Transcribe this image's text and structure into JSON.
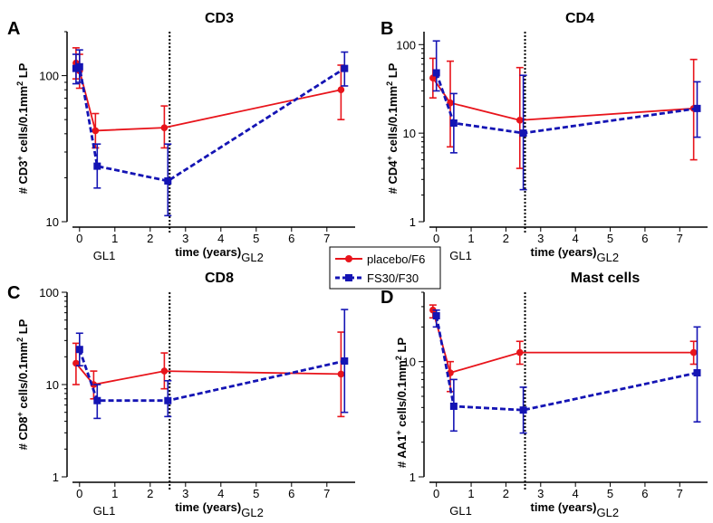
{
  "colors": {
    "placebo": "#e8141b",
    "fs30": "#1414b4",
    "axis": "#000000"
  },
  "legend": {
    "position": "center",
    "items": [
      {
        "label": "placebo/F6",
        "color": "#e8141b",
        "style": "solid",
        "marker": "circle"
      },
      {
        "label": "FS30/F30",
        "color": "#1414b4",
        "style": "dashed",
        "marker": "square"
      }
    ]
  },
  "chart_data": [
    {
      "type": "line",
      "panel": "A",
      "title": "CD3",
      "ylabel_parts": [
        "# CD3",
        "+",
        " cells/0.1mm",
        "2",
        " LP"
      ],
      "xlabel_main": "time (years)",
      "xlabel_sub": "GL2",
      "gl1_label": "GL1",
      "yscale": "log",
      "ylim": [
        10,
        200
      ],
      "yticks": [
        10,
        100
      ],
      "xlim": [
        -0.2,
        7.8
      ],
      "xticks": [
        0,
        1,
        2,
        3,
        4,
        5,
        6,
        7
      ],
      "vline_x": 2.55,
      "series": [
        {
          "name": "placebo/F6",
          "x": [
            -0.1,
            0,
            0.45,
            2.4,
            7.4
          ],
          "y": [
            122,
            108,
            42,
            44,
            80
          ],
          "err_lo": [
            95,
            82,
            32,
            32,
            50
          ],
          "err_hi": [
            155,
            140,
            55,
            62,
            118
          ]
        },
        {
          "name": "FS30/F30",
          "x": [
            -0.1,
            0,
            0.5,
            2.5,
            7.5
          ],
          "y": [
            112,
            115,
            24,
            19,
            112
          ],
          "err_lo": [
            88,
            90,
            17,
            11,
            85
          ],
          "err_hi": [
            140,
            150,
            34,
            34,
            145
          ]
        }
      ]
    },
    {
      "type": "line",
      "panel": "B",
      "title": "CD4",
      "ylabel_parts": [
        "# CD4",
        "+",
        " cells/0.1mm",
        "2",
        " LP"
      ],
      "xlabel_main": "time (years)",
      "xlabel_sub": "GL2",
      "gl1_label": "GL1",
      "yscale": "log",
      "ylim": [
        1,
        140
      ],
      "yticks": [
        1,
        10,
        100
      ],
      "xlim": [
        -0.2,
        7.8
      ],
      "xticks": [
        0,
        1,
        2,
        3,
        4,
        5,
        6,
        7
      ],
      "vline_x": 2.55,
      "series": [
        {
          "name": "placebo/F6",
          "x": [
            -0.1,
            0.4,
            2.4,
            7.4
          ],
          "y": [
            42,
            22,
            14,
            19
          ],
          "err_lo": [
            25,
            7,
            4,
            5
          ],
          "err_hi": [
            70,
            65,
            55,
            68
          ]
        },
        {
          "name": "FS30/F30",
          "x": [
            0,
            0.5,
            2.5,
            7.5
          ],
          "y": [
            48,
            13,
            10,
            19
          ],
          "err_lo": [
            30,
            6,
            2.3,
            9
          ],
          "err_hi": [
            110,
            28,
            45,
            38
          ]
        }
      ]
    },
    {
      "type": "line",
      "panel": "C",
      "title": "CD8",
      "ylabel_parts": [
        "# CD8",
        "+",
        " cells/0.1mm",
        "2",
        " LP"
      ],
      "xlabel_main": "time (years)",
      "xlabel_sub": "GL2",
      "gl1_label": "GL1",
      "yscale": "log",
      "ylim": [
        1,
        100
      ],
      "yticks": [
        1,
        10,
        100
      ],
      "xlim": [
        -0.2,
        7.8
      ],
      "xticks": [
        0,
        1,
        2,
        3,
        4,
        5,
        6,
        7
      ],
      "vline_x": 2.55,
      "series": [
        {
          "name": "placebo/F6",
          "x": [
            -0.1,
            0.4,
            2.4,
            7.4
          ],
          "y": [
            17,
            10,
            14,
            13
          ],
          "err_lo": [
            10,
            7,
            9,
            4.5
          ],
          "err_hi": [
            28,
            14,
            22,
            37
          ]
        },
        {
          "name": "FS30/F30",
          "x": [
            0,
            0.5,
            2.5,
            7.5
          ],
          "y": [
            24,
            6.7,
            6.7,
            18
          ],
          "err_lo": [
            16,
            4.3,
            4.5,
            5
          ],
          "err_hi": [
            36,
            10,
            11,
            65
          ]
        }
      ]
    },
    {
      "type": "line",
      "panel": "D",
      "title": "Mast cells",
      "ylabel_parts": [
        "# AA1",
        "+",
        " cells/0.1mm",
        "2",
        " LP"
      ],
      "xlabel_main": "time (years)",
      "xlabel_sub": "GL2",
      "gl1_label": "GL1",
      "yscale": "log",
      "ylim": [
        1,
        40
      ],
      "yticks": [
        1,
        10
      ],
      "xlim": [
        -0.2,
        7.8
      ],
      "xticks": [
        0,
        1,
        2,
        3,
        4,
        5,
        6,
        7
      ],
      "vline_x": 2.55,
      "series": [
        {
          "name": "placebo/F6",
          "x": [
            -0.1,
            0.4,
            2.4,
            7.4
          ],
          "y": [
            28,
            8,
            12,
            12
          ],
          "err_lo": [
            24,
            5.5,
            9.5,
            9.5
          ],
          "err_hi": [
            31,
            10,
            15,
            15
          ]
        },
        {
          "name": "FS30/F30",
          "x": [
            0,
            0.5,
            2.5,
            7.5
          ],
          "y": [
            25,
            4.1,
            3.8,
            8
          ],
          "err_lo": [
            20,
            2.5,
            2.4,
            3
          ],
          "err_hi": [
            28,
            7,
            6,
            20
          ]
        }
      ]
    }
  ]
}
